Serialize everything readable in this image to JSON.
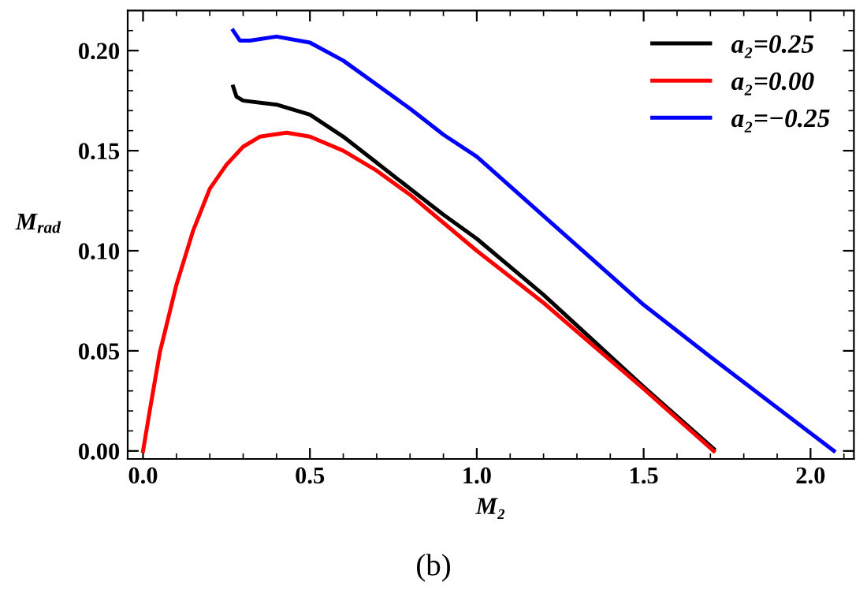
{
  "chart_data": {
    "type": "line",
    "xlabel": "M₂",
    "ylabel": "M$_{rad}$",
    "annotations": [
      "(b)"
    ],
    "series": [
      {
        "name": "a₂=0.25",
        "color": "#000000",
        "x": [
          0.27,
          0.28,
          0.3,
          0.4,
          0.5,
          0.6,
          0.7,
          0.8,
          0.9,
          1.0,
          1.2,
          1.5,
          1.71
        ],
        "values": [
          0.182,
          0.177,
          0.175,
          0.173,
          0.168,
          0.157,
          0.144,
          0.131,
          0.118,
          0.106,
          0.078,
          0.032,
          0.001
        ]
      },
      {
        "name": "a₂=0.00",
        "color": "#ff0000",
        "x": [
          0.0,
          0.02,
          0.05,
          0.1,
          0.15,
          0.2,
          0.25,
          0.3,
          0.35,
          0.43,
          0.5,
          0.6,
          0.7,
          0.8,
          0.9,
          1.0,
          1.2,
          1.5,
          1.71
        ],
        "values": [
          0.0,
          0.02,
          0.049,
          0.083,
          0.11,
          0.131,
          0.143,
          0.152,
          0.157,
          0.159,
          0.157,
          0.15,
          0.14,
          0.128,
          0.114,
          0.1,
          0.074,
          0.031,
          0.0
        ]
      },
      {
        "name": "a₂=−0.25",
        "color": "#0000ff",
        "x": [
          0.27,
          0.29,
          0.32,
          0.4,
          0.5,
          0.6,
          0.7,
          0.8,
          0.9,
          1.0,
          1.5,
          1.7,
          2.07
        ],
        "values": [
          0.21,
          0.205,
          0.205,
          0.207,
          0.204,
          0.195,
          0.183,
          0.171,
          0.158,
          0.147,
          0.073,
          0.047,
          0.0
        ]
      }
    ],
    "xlim": [
      -0.046,
      2.13
    ],
    "ylim": [
      -0.004,
      0.22
    ],
    "xticks": [
      {
        "value": 0.0,
        "label": "0.0"
      },
      {
        "value": 0.1,
        "label": null
      },
      {
        "value": 0.2,
        "label": null
      },
      {
        "value": 0.3,
        "label": null
      },
      {
        "value": 0.4,
        "label": null
      },
      {
        "value": 0.5,
        "label": "0.5"
      },
      {
        "value": 0.6,
        "label": null
      },
      {
        "value": 0.7,
        "label": null
      },
      {
        "value": 0.8,
        "label": null
      },
      {
        "value": 0.9,
        "label": null
      },
      {
        "value": 1.0,
        "label": "1.0"
      },
      {
        "value": 1.1,
        "label": null
      },
      {
        "value": 1.2,
        "label": null
      },
      {
        "value": 1.3,
        "label": null
      },
      {
        "value": 1.4,
        "label": null
      },
      {
        "value": 1.5,
        "label": "1.5"
      },
      {
        "value": 1.6,
        "label": null
      },
      {
        "value": 1.7,
        "label": null
      },
      {
        "value": 1.8,
        "label": null
      },
      {
        "value": 1.9,
        "label": null
      },
      {
        "value": 2.0,
        "label": "2.0"
      },
      {
        "value": 2.1,
        "label": null
      }
    ],
    "yticks": [
      {
        "value": 0.0,
        "label": "0.00"
      },
      {
        "value": 0.01,
        "label": null
      },
      {
        "value": 0.02,
        "label": null
      },
      {
        "value": 0.03,
        "label": null
      },
      {
        "value": 0.04,
        "label": null
      },
      {
        "value": 0.05,
        "label": "0.05"
      },
      {
        "value": 0.06,
        "label": null
      },
      {
        "value": 0.07,
        "label": null
      },
      {
        "value": 0.08,
        "label": null
      },
      {
        "value": 0.09,
        "label": null
      },
      {
        "value": 0.1,
        "label": "0.10"
      },
      {
        "value": 0.11,
        "label": null
      },
      {
        "value": 0.12,
        "label": null
      },
      {
        "value": 0.13,
        "label": null
      },
      {
        "value": 0.14,
        "label": null
      },
      {
        "value": 0.15,
        "label": "0.15"
      },
      {
        "value": 0.16,
        "label": null
      },
      {
        "value": 0.17,
        "label": null
      },
      {
        "value": 0.18,
        "label": null
      },
      {
        "value": 0.19,
        "label": null
      },
      {
        "value": 0.2,
        "label": "0.20"
      },
      {
        "value": 0.21,
        "label": null
      }
    ],
    "grid": false,
    "legend": "top right"
  }
}
